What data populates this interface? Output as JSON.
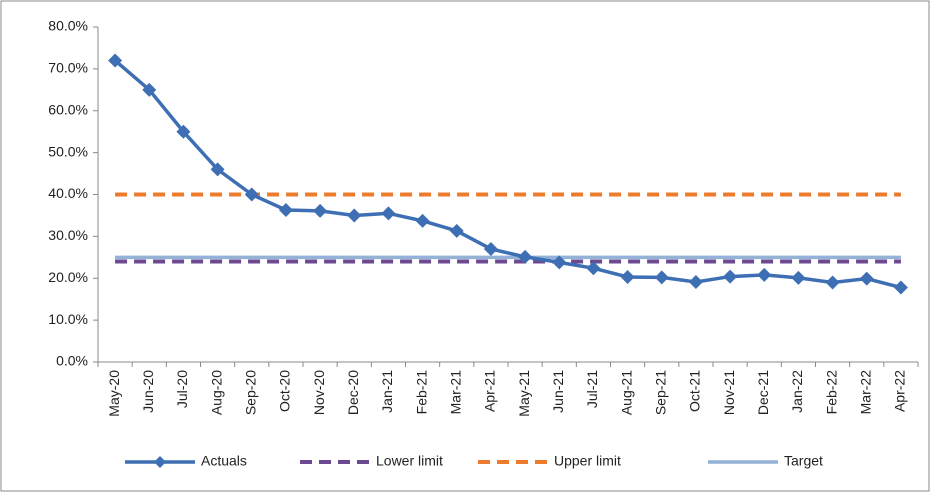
{
  "chart_data": {
    "type": "line",
    "categories": [
      "May-20",
      "Jun-20",
      "Jul-20",
      "Aug-20",
      "Sep-20",
      "Oct-20",
      "Nov-20",
      "Dec-20",
      "Jan-21",
      "Feb-21",
      "Mar-21",
      "Apr-21",
      "May-21",
      "Jun-21",
      "Jul-21",
      "Aug-21",
      "Sep-21",
      "Oct-21",
      "Nov-21",
      "Dec-21",
      "Jan-22",
      "Feb-22",
      "Mar-22",
      "Apr-22"
    ],
    "series": [
      {
        "name": "Actuals",
        "color": "#3e6fb4",
        "style": "solid-marker",
        "values": [
          72,
          65,
          55,
          46,
          40,
          36.3,
          36.1,
          35,
          35.5,
          33.7,
          31.3,
          27,
          25.1,
          23.8,
          22.4,
          20.3,
          20.2,
          19.1,
          20.4,
          20.8,
          20.1,
          19,
          19.9,
          17.8
        ]
      },
      {
        "name": "Lower limit",
        "color": "#6b4a92",
        "style": "dashed",
        "values": [
          24,
          24,
          24,
          24,
          24,
          24,
          24,
          24,
          24,
          24,
          24,
          24,
          24,
          24,
          24,
          24,
          24,
          24,
          24,
          24,
          24,
          24,
          24,
          24
        ]
      },
      {
        "name": "Upper limit",
        "color": "#ec7c2c",
        "style": "dashed",
        "values": [
          40,
          40,
          40,
          40,
          40,
          40,
          40,
          40,
          40,
          40,
          40,
          40,
          40,
          40,
          40,
          40,
          40,
          40,
          40,
          40,
          40,
          40,
          40,
          40
        ]
      },
      {
        "name": "Target",
        "color": "#94b2d8",
        "style": "solid",
        "values": [
          25,
          25,
          25,
          25,
          25,
          25,
          25,
          25,
          25,
          25,
          25,
          25,
          25,
          25,
          25,
          25,
          25,
          25,
          25,
          25,
          25,
          25,
          25,
          25
        ]
      }
    ],
    "ylim": [
      0,
      80
    ],
    "yticks": [
      {
        "value": 0,
        "label": "0.0%"
      },
      {
        "value": 10,
        "label": "10.0%"
      },
      {
        "value": 20,
        "label": "20.0%"
      },
      {
        "value": 30,
        "label": "30.0%"
      },
      {
        "value": 40,
        "label": "40.0%"
      },
      {
        "value": 50,
        "label": "50.0%"
      },
      {
        "value": 60,
        "label": "60.0%"
      },
      {
        "value": 70,
        "label": "70.0%"
      },
      {
        "value": 80,
        "label": "80.0%"
      }
    ],
    "grid": false,
    "legend": "bottom"
  }
}
